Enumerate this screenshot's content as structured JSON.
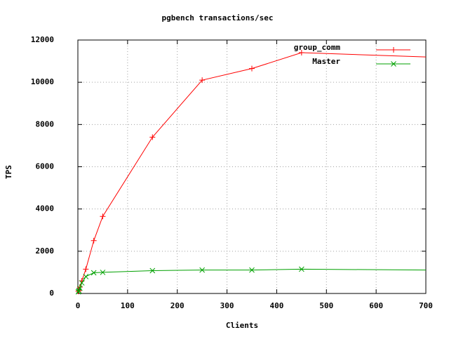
{
  "chart_data": {
    "type": "line",
    "title": "pgbench transactions/sec",
    "x_label": "Clients",
    "y_label": "TPS",
    "x": [
      1,
      2,
      4,
      8,
      16,
      32,
      50,
      150,
      250,
      350,
      450,
      700
    ],
    "series": [
      {
        "name": "group_comm",
        "color": "#ff0000",
        "marker": "plus",
        "values": [
          100,
          150,
          300,
          600,
          1150,
          2500,
          3650,
          7400,
          10100,
          10650,
          11400,
          11200
        ]
      },
      {
        "name": "Master",
        "color": "#00a000",
        "marker": "cross",
        "values": [
          80,
          130,
          250,
          500,
          800,
          980,
          1000,
          1080,
          1110,
          1110,
          1150,
          1110
        ]
      }
    ],
    "xlim": [
      0,
      700
    ],
    "xticks": [
      0,
      100,
      200,
      300,
      400,
      500,
      600,
      700
    ],
    "ylim": [
      0,
      12000
    ],
    "yticks": [
      0,
      2000,
      4000,
      6000,
      8000,
      10000,
      12000
    ],
    "grid": true,
    "legend": "top-right"
  }
}
